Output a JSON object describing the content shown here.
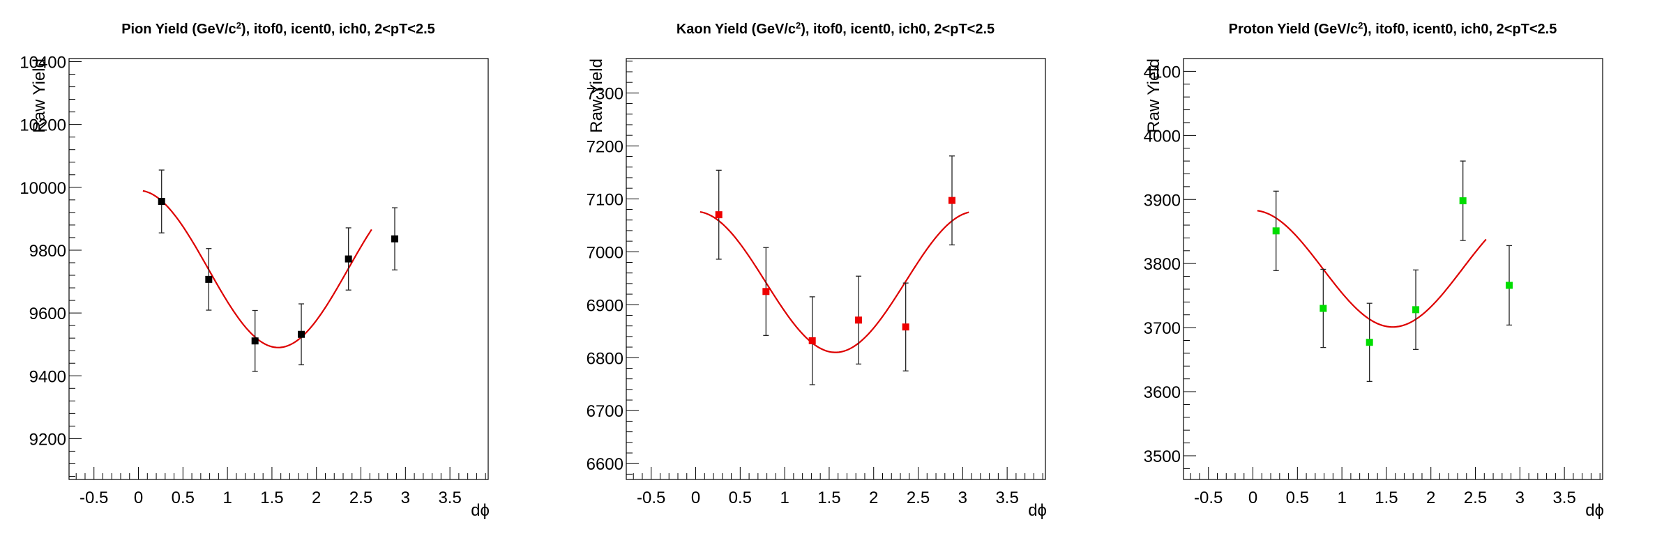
{
  "chart_data": [
    {
      "type": "scatter",
      "title_pre": "Pion Yield (GeV/c",
      "title_sup": "2",
      "title_post": "), itof0, icent0, ich0, 2<pT<2.5",
      "xlabel": "dϕ",
      "ylabel": "Raw Yield",
      "xlim": [
        -0.78,
        3.93
      ],
      "ylim": [
        9070,
        10410
      ],
      "x_ticks": [
        "-0.5",
        "0",
        "0.5",
        "1",
        "1.5",
        "2",
        "2.5",
        "3",
        "3.5"
      ],
      "y_ticks": [
        "9200",
        "9400",
        "9600",
        "9800",
        "10000",
        "10200",
        "10400"
      ],
      "grid": false,
      "marker_color": "#000000",
      "fit_color": "#dd0000",
      "series": [
        {
          "x": [
            0.26,
            0.79,
            1.31,
            1.83,
            2.36,
            2.88
          ],
          "y": [
            9955,
            9707,
            9511,
            9532,
            9772,
            9836
          ],
          "yerr": [
            100,
            98,
            97,
            97,
            99,
            99
          ]
        }
      ],
      "fit": {
        "x_range": [
          0.05,
          2.62
        ],
        "mean": 9740,
        "amplitude": 250,
        "phase_min": 1.571
      }
    },
    {
      "type": "scatter",
      "title_pre": "Kaon Yield (GeV/c",
      "title_sup": "2",
      "title_post": "), itof0, icent0, ich0, 2<pT<2.5",
      "xlabel": "dϕ",
      "ylabel": "Raw Yield",
      "xlim": [
        -0.78,
        3.93
      ],
      "ylim": [
        6570,
        7365
      ],
      "x_ticks": [
        "-0.5",
        "0",
        "0.5",
        "1",
        "1.5",
        "2",
        "2.5",
        "3",
        "3.5"
      ],
      "y_ticks": [
        "6600",
        "6700",
        "6800",
        "6900",
        "7000",
        "7100",
        "7200",
        "7300"
      ],
      "grid": false,
      "marker_color": "#ee0000",
      "fit_color": "#dd0000",
      "series": [
        {
          "x": [
            0.26,
            0.79,
            1.31,
            1.83,
            2.36,
            2.88
          ],
          "y": [
            7070,
            6925,
            6832,
            6871,
            6858,
            7097
          ],
          "yerr": [
            84,
            83,
            83,
            83,
            83,
            84
          ]
        }
      ],
      "fit": {
        "x_range": [
          0.05,
          3.07
        ],
        "mean": 6943,
        "amplitude": 133,
        "phase_min": 1.571
      }
    },
    {
      "type": "scatter",
      "title_pre": "Proton Yield (GeV/c",
      "title_sup": "2",
      "title_post": "), itof0, icent0, ich0, 2<pT<2.5",
      "xlabel": "dϕ",
      "ylabel": "Raw Yield",
      "xlim": [
        -0.78,
        3.93
      ],
      "ylim": [
        3463,
        4120
      ],
      "x_ticks": [
        "-0.5",
        "0",
        "0.5",
        "1",
        "1.5",
        "2",
        "2.5",
        "3",
        "3.5"
      ],
      "y_ticks": [
        "3500",
        "3600",
        "3700",
        "3800",
        "3900",
        "4000",
        "4100"
      ],
      "grid": false,
      "marker_color": "#00dd00",
      "fit_color": "#dd0000",
      "series": [
        {
          "x": [
            0.26,
            0.79,
            1.31,
            1.83,
            2.36,
            2.88
          ],
          "y": [
            3851,
            3730,
            3677,
            3728,
            3898,
            3766
          ],
          "yerr": [
            62,
            61,
            61,
            62,
            62,
            62
          ]
        }
      ],
      "fit": {
        "x_range": [
          0.05,
          2.62
        ],
        "mean": 3792,
        "amplitude": 91,
        "phase_min": 1.571
      }
    }
  ]
}
